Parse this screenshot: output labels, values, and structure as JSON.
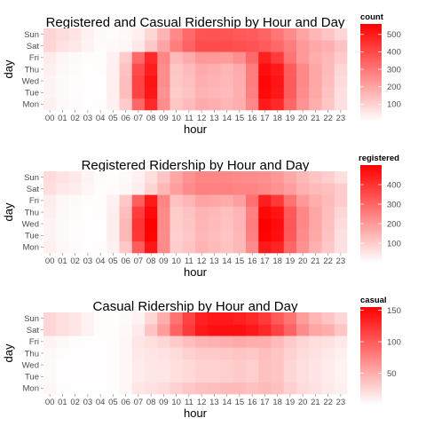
{
  "chart_data": [
    {
      "type": "heatmap",
      "title": "Registered and Casual Ridership by Hour and Day",
      "xlabel": "hour",
      "ylabel": "day",
      "x": [
        "00",
        "01",
        "02",
        "03",
        "04",
        "05",
        "06",
        "07",
        "08",
        "09",
        "10",
        "11",
        "12",
        "13",
        "14",
        "15",
        "16",
        "17",
        "18",
        "19",
        "20",
        "21",
        "22",
        "23"
      ],
      "y": [
        "Mon",
        "Tue",
        "Wed",
        "Thu",
        "Fri",
        "Sat",
        "Sun"
      ],
      "values": [
        [
          35,
          15,
          9,
          5,
          6,
          30,
          115,
          335,
          470,
          250,
          125,
          150,
          185,
          175,
          160,
          180,
          260,
          500,
          470,
          335,
          240,
          175,
          125,
          70
        ],
        [
          25,
          10,
          6,
          4,
          5,
          35,
          145,
          410,
          510,
          240,
          115,
          135,
          170,
          160,
          150,
          175,
          280,
          540,
          510,
          355,
          250,
          190,
          135,
          70
        ],
        [
          25,
          11,
          6,
          4,
          5,
          35,
          145,
          415,
          515,
          250,
          120,
          140,
          175,
          165,
          155,
          180,
          285,
          545,
          515,
          360,
          260,
          195,
          145,
          80
        ],
        [
          35,
          15,
          8,
          5,
          6,
          35,
          135,
          395,
          495,
          250,
          125,
          150,
          185,
          175,
          160,
          185,
          285,
          530,
          500,
          355,
          260,
          195,
          150,
          90
        ],
        [
          45,
          22,
          12,
          6,
          6,
          30,
          115,
          330,
          470,
          265,
          150,
          185,
          225,
          225,
          215,
          245,
          330,
          490,
          430,
          305,
          225,
          180,
          155,
          115
        ],
        [
          90,
          65,
          50,
          25,
          8,
          10,
          20,
          50,
          120,
          200,
          285,
          345,
          390,
          395,
          390,
          385,
          380,
          360,
          330,
          285,
          225,
          190,
          175,
          135
        ],
        [
          95,
          75,
          60,
          30,
          10,
          8,
          15,
          35,
          90,
          165,
          260,
          330,
          375,
          380,
          375,
          365,
          355,
          340,
          300,
          255,
          200,
          160,
          130,
          90
        ]
      ],
      "legend": {
        "title": "count",
        "ticks": [
          100,
          200,
          300,
          400,
          500
        ],
        "min": 0,
        "max": 560,
        "position": "right"
      },
      "low_color": "#ffffff",
      "high_color": "#ff0000"
    },
    {
      "type": "heatmap",
      "title": "Registered Ridership by Hour and Day",
      "xlabel": "hour",
      "ylabel": "day",
      "x": [
        "00",
        "01",
        "02",
        "03",
        "04",
        "05",
        "06",
        "07",
        "08",
        "09",
        "10",
        "11",
        "12",
        "13",
        "14",
        "15",
        "16",
        "17",
        "18",
        "19",
        "20",
        "21",
        "22",
        "23"
      ],
      "y": [
        "Mon",
        "Tue",
        "Wed",
        "Thu",
        "Fri",
        "Sat",
        "Sun"
      ],
      "values": [
        [
          30,
          13,
          8,
          4,
          5,
          28,
          110,
          320,
          455,
          230,
          100,
          115,
          150,
          135,
          120,
          140,
          225,
          450,
          430,
          300,
          215,
          155,
          110,
          60
        ],
        [
          22,
          9,
          5,
          3,
          4,
          33,
          140,
          395,
          495,
          225,
          95,
          110,
          140,
          130,
          115,
          140,
          250,
          495,
          470,
          325,
          225,
          170,
          120,
          60
        ],
        [
          22,
          10,
          5,
          3,
          4,
          33,
          140,
          400,
          500,
          230,
          100,
          115,
          145,
          135,
          120,
          145,
          255,
          500,
          475,
          330,
          235,
          175,
          125,
          70
        ],
        [
          30,
          13,
          7,
          4,
          5,
          33,
          130,
          380,
          480,
          230,
          100,
          120,
          150,
          140,
          125,
          145,
          250,
          485,
          460,
          325,
          235,
          175,
          130,
          80
        ],
        [
          38,
          18,
          10,
          5,
          5,
          28,
          110,
          315,
          450,
          240,
          120,
          145,
          180,
          175,
          165,
          190,
          280,
          440,
          390,
          275,
          200,
          160,
          135,
          100
        ],
        [
          65,
          45,
          35,
          18,
          6,
          8,
          16,
          38,
          85,
          140,
          190,
          225,
          250,
          250,
          245,
          240,
          240,
          230,
          215,
          190,
          155,
          135,
          125,
          100
        ],
        [
          70,
          55,
          45,
          22,
          8,
          6,
          12,
          28,
          65,
          115,
          175,
          215,
          240,
          240,
          235,
          230,
          225,
          220,
          200,
          170,
          140,
          115,
          95,
          65
        ]
      ],
      "legend": {
        "title": "registered",
        "ticks": [
          100,
          200,
          300,
          400
        ],
        "min": 0,
        "max": 500,
        "position": "right"
      },
      "low_color": "#ffffff",
      "high_color": "#ff0000"
    },
    {
      "type": "heatmap",
      "title": "Casual Ridership by Hour and Day",
      "xlabel": "hour",
      "ylabel": "day",
      "x": [
        "00",
        "01",
        "02",
        "03",
        "04",
        "05",
        "06",
        "07",
        "08",
        "09",
        "10",
        "11",
        "12",
        "13",
        "14",
        "15",
        "16",
        "17",
        "18",
        "19",
        "20",
        "21",
        "22",
        "23"
      ],
      "y": [
        "Mon",
        "Tue",
        "Wed",
        "Thu",
        "Fri",
        "Sat",
        "Sun"
      ],
      "values": [
        [
          5,
          2,
          1,
          1,
          1,
          2,
          5,
          15,
          18,
          22,
          28,
          34,
          38,
          40,
          42,
          42,
          38,
          42,
          38,
          30,
          22,
          18,
          13,
          9
        ],
        [
          3,
          1,
          1,
          1,
          1,
          2,
          5,
          12,
          15,
          16,
          20,
          24,
          28,
          28,
          30,
          32,
          30,
          38,
          35,
          25,
          20,
          16,
          12,
          8
        ],
        [
          3,
          1,
          1,
          1,
          1,
          2,
          5,
          12,
          15,
          16,
          20,
          24,
          28,
          28,
          30,
          32,
          30,
          38,
          35,
          25,
          20,
          16,
          12,
          8
        ],
        [
          4,
          2,
          1,
          1,
          1,
          2,
          5,
          14,
          16,
          18,
          22,
          28,
          32,
          32,
          34,
          36,
          34,
          40,
          36,
          28,
          22,
          18,
          14,
          10
        ],
        [
          7,
          4,
          2,
          1,
          1,
          2,
          5,
          15,
          20,
          25,
          32,
          40,
          46,
          48,
          50,
          52,
          50,
          50,
          42,
          32,
          25,
          20,
          18,
          14
        ],
        [
          25,
          20,
          15,
          8,
          2,
          2,
          4,
          12,
          35,
          60,
          95,
          120,
          140,
          145,
          145,
          145,
          140,
          130,
          115,
          95,
          70,
          55,
          50,
          35
        ],
        [
          25,
          20,
          15,
          8,
          2,
          2,
          3,
          8,
          25,
          50,
          85,
          115,
          135,
          140,
          140,
          135,
          130,
          120,
          100,
          85,
          60,
          45,
          35,
          25
        ]
      ],
      "legend": {
        "title": "casual",
        "ticks": [
          50,
          100,
          150
        ],
        "min": 0,
        "max": 155,
        "position": "right"
      },
      "low_color": "#ffffff",
      "high_color": "#ff0000"
    }
  ]
}
